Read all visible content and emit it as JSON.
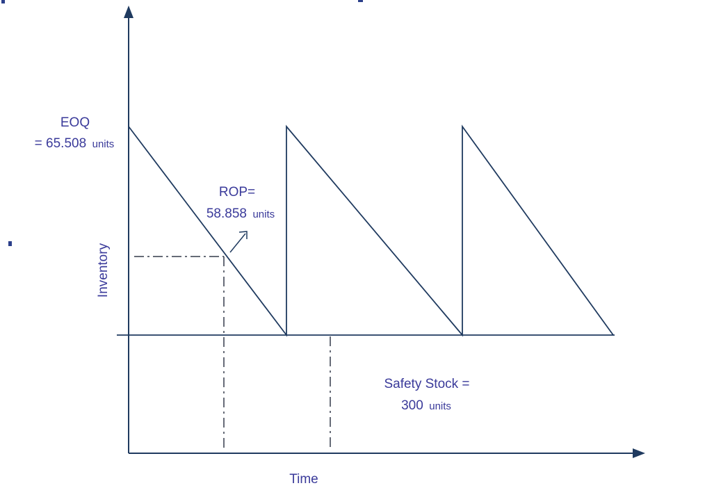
{
  "diagram": {
    "eoq": {
      "line1": "EOQ",
      "value": "= 65.508",
      "unit": "units"
    },
    "rop": {
      "line1": "ROP=",
      "value": "58.858",
      "unit": "units"
    },
    "safety_stock": {
      "line1": "Safety Stock =",
      "value": "300",
      "unit": "units"
    },
    "y_axis_label": "Inventory",
    "x_axis_label": "Time"
  },
  "colors": {
    "line": "#1f3a5f",
    "text": "#3a3a9a",
    "dash": "#333a4a"
  }
}
